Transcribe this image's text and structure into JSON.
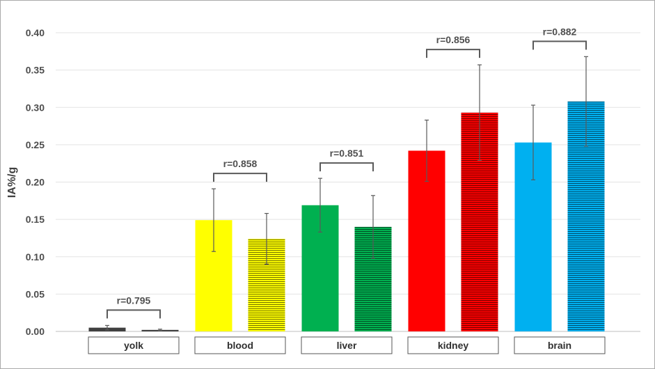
{
  "chart_data": {
    "type": "bar",
    "ylabel": "IA%/g",
    "xlabel": "",
    "title": "",
    "ylim": [
      0,
      0.4
    ],
    "yticks": [
      "0.00",
      "0.05",
      "0.10",
      "0.15",
      "0.20",
      "0.25",
      "0.30",
      "0.35",
      "0.40"
    ],
    "grid": true,
    "legend": "none",
    "categories": [
      "yolk",
      "blood",
      "liver",
      "kidney",
      "brain"
    ],
    "series": [
      {
        "values": [
          0.005,
          0.149,
          0.169,
          0.242,
          0.253
        ],
        "errors": [
          0.003,
          0.042,
          0.036,
          0.041,
          0.05
        ],
        "pattern": "solid"
      },
      {
        "values": [
          0.002,
          0.124,
          0.14,
          0.293,
          0.308
        ],
        "errors": [
          0.001,
          0.034,
          0.042,
          0.064,
          0.06
        ],
        "pattern": "striped"
      }
    ],
    "category_colors": [
      "#404040",
      "#ffff00",
      "#00b050",
      "#ff0000",
      "#00b0f0"
    ],
    "annotations": [
      "r=0.795",
      "r=0.858",
      "r=0.851",
      "r=0.856",
      "r=0.882"
    ]
  }
}
